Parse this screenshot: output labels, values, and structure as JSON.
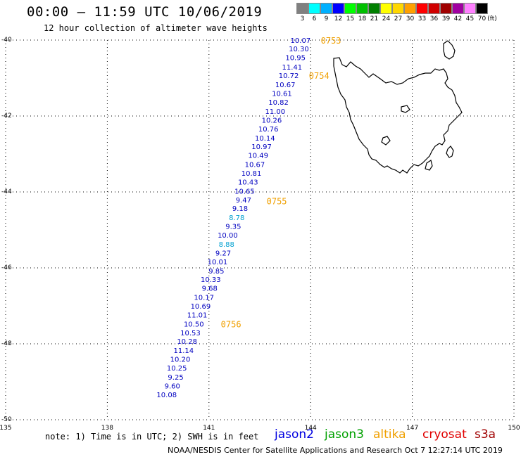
{
  "header": {
    "title": "00:00 – 11:59 UTC 10/06/2019",
    "subtitle": "12 hour collection of altimeter wave heights"
  },
  "legend": {
    "unit": "(ft)",
    "items": [
      {
        "label": "3",
        "color": "#808080"
      },
      {
        "label": "6",
        "color": "#00ffff"
      },
      {
        "label": "9",
        "color": "#00b0ff"
      },
      {
        "label": "12",
        "color": "#0000ff"
      },
      {
        "label": "15",
        "color": "#00ff00"
      },
      {
        "label": "18",
        "color": "#00c000"
      },
      {
        "label": "21",
        "color": "#008000"
      },
      {
        "label": "24",
        "color": "#ffff00"
      },
      {
        "label": "27",
        "color": "#ffd700"
      },
      {
        "label": "30",
        "color": "#ffa000"
      },
      {
        "label": "33",
        "color": "#ff0000"
      },
      {
        "label": "36",
        "color": "#d00000"
      },
      {
        "label": "39",
        "color": "#a00000"
      },
      {
        "label": "42",
        "color": "#a000a0"
      },
      {
        "label": "45",
        "color": "#ff80ff"
      },
      {
        "label": "70",
        "color": "#000000"
      }
    ]
  },
  "map": {
    "lon_min": 135,
    "lon_max": 150,
    "lat_min": -50,
    "lat_max": -40,
    "lon_ticks": [
      {
        "value": 135,
        "label": "135"
      },
      {
        "value": 138,
        "label": "138"
      },
      {
        "value": 141,
        "label": "141"
      },
      {
        "value": 144,
        "label": "144"
      },
      {
        "value": 147,
        "label": "147"
      },
      {
        "value": 150,
        "label": "150"
      }
    ],
    "lat_ticks": [
      {
        "value": -40,
        "label": "-40"
      },
      {
        "value": -42,
        "label": "-42"
      },
      {
        "value": -44,
        "label": "-44"
      },
      {
        "value": -46,
        "label": "-46"
      },
      {
        "value": -48,
        "label": "-48"
      },
      {
        "value": -50,
        "label": "-50"
      }
    ],
    "coastline": "Tasmania",
    "track_color": "#0000c0",
    "light_color": "#00a0d0",
    "time_color": "#f0a000",
    "track": [
      {
        "lon": 144.0,
        "lat": -40.0,
        "swh": "10.07"
      },
      {
        "lon": 143.95,
        "lat": -40.22,
        "swh": "10.30"
      },
      {
        "lon": 143.85,
        "lat": -40.45,
        "swh": "10.95"
      },
      {
        "lon": 143.75,
        "lat": -40.7,
        "swh": "11.41"
      },
      {
        "lon": 143.65,
        "lat": -40.93,
        "swh": "10.72"
      },
      {
        "lon": 143.55,
        "lat": -41.17,
        "swh": "10.67"
      },
      {
        "lon": 143.45,
        "lat": -41.4,
        "swh": "10.61"
      },
      {
        "lon": 143.35,
        "lat": -41.63,
        "swh": "10.82"
      },
      {
        "lon": 143.25,
        "lat": -41.87,
        "swh": "11.00"
      },
      {
        "lon": 143.15,
        "lat": -42.1,
        "swh": "10.26"
      },
      {
        "lon": 143.05,
        "lat": -42.33,
        "swh": "10.76"
      },
      {
        "lon": 142.95,
        "lat": -42.57,
        "swh": "10.14"
      },
      {
        "lon": 142.85,
        "lat": -42.8,
        "swh": "10.97"
      },
      {
        "lon": 142.75,
        "lat": -43.03,
        "swh": "10.49"
      },
      {
        "lon": 142.65,
        "lat": -43.27,
        "swh": "10.67"
      },
      {
        "lon": 142.55,
        "lat": -43.5,
        "swh": "10.81"
      },
      {
        "lon": 142.45,
        "lat": -43.73,
        "swh": "10.43"
      },
      {
        "lon": 142.35,
        "lat": -43.97,
        "swh": "10.65"
      },
      {
        "lon": 142.25,
        "lat": -44.2,
        "swh": "9.47"
      },
      {
        "lon": 142.15,
        "lat": -44.43,
        "swh": "9.18"
      },
      {
        "lon": 142.05,
        "lat": -44.67,
        "swh": "8.78",
        "light": true
      },
      {
        "lon": 141.95,
        "lat": -44.9,
        "swh": "9.35"
      },
      {
        "lon": 141.85,
        "lat": -45.13,
        "swh": "10.00"
      },
      {
        "lon": 141.75,
        "lat": -45.37,
        "swh": "8.88",
        "light": true
      },
      {
        "lon": 141.65,
        "lat": -45.6,
        "swh": "9.27"
      },
      {
        "lon": 141.55,
        "lat": -45.83,
        "swh": "10.01"
      },
      {
        "lon": 141.45,
        "lat": -46.07,
        "swh": "9.85"
      },
      {
        "lon": 141.35,
        "lat": -46.3,
        "swh": "10.33"
      },
      {
        "lon": 141.25,
        "lat": -46.53,
        "swh": "9.68"
      },
      {
        "lon": 141.15,
        "lat": -46.77,
        "swh": "10.17"
      },
      {
        "lon": 141.05,
        "lat": -47.0,
        "swh": "10.69"
      },
      {
        "lon": 140.95,
        "lat": -47.23,
        "swh": "11.01"
      },
      {
        "lon": 140.85,
        "lat": -47.47,
        "swh": "10.50"
      },
      {
        "lon": 140.75,
        "lat": -47.7,
        "swh": "10.53"
      },
      {
        "lon": 140.65,
        "lat": -47.93,
        "swh": "10.28"
      },
      {
        "lon": 140.55,
        "lat": -48.17,
        "swh": "11.14"
      },
      {
        "lon": 140.45,
        "lat": -48.4,
        "swh": "10.20"
      },
      {
        "lon": 140.35,
        "lat": -48.63,
        "swh": "10.25"
      },
      {
        "lon": 140.25,
        "lat": -48.87,
        "swh": "9.25"
      },
      {
        "lon": 140.15,
        "lat": -49.1,
        "swh": "9.60"
      },
      {
        "lon": 140.05,
        "lat": -49.33,
        "swh": "10.08"
      }
    ],
    "times": [
      {
        "label": "0753",
        "lon": 144.3,
        "lat": -40.0
      },
      {
        "label": "0754",
        "lon": 143.95,
        "lat": -40.93
      },
      {
        "label": "0755",
        "lon": 142.7,
        "lat": -44.23
      },
      {
        "label": "0756",
        "lon": 141.35,
        "lat": -47.47
      }
    ]
  },
  "note": "note: 1) Time is in UTC; 2) SWH is in feet",
  "satellites": [
    {
      "name": "jason2",
      "color": "#0000e0"
    },
    {
      "name": "jason3",
      "color": "#00a000"
    },
    {
      "name": "altika",
      "color": "#f0a000"
    },
    {
      "name": "cryosat",
      "color": "#e00000"
    },
    {
      "name": "s3a",
      "color": "#a00000"
    }
  ],
  "footer": "NOAA/NESDIS Center for Satellite Applications and Research    Oct  7 12:27:14 UTC 2019"
}
